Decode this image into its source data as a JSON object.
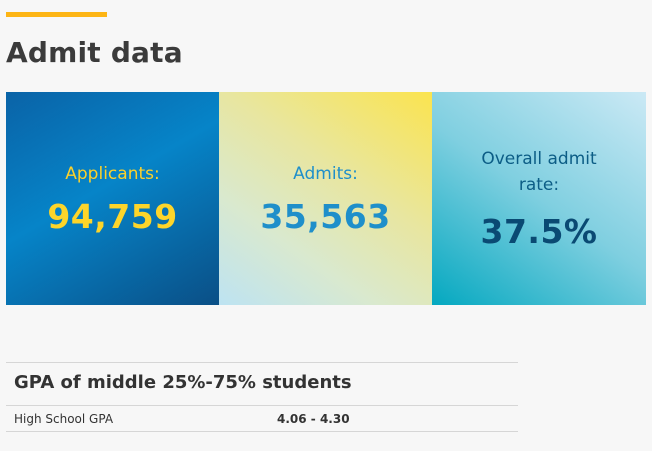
{
  "header": {
    "title": "Admit data"
  },
  "stats": [
    {
      "label": "Applicants:",
      "value": "94,759"
    },
    {
      "label": "Admits:",
      "value": "35,563"
    },
    {
      "label": "Overall admit rate:",
      "value": "37.5%"
    }
  ],
  "gpa": {
    "heading": "GPA of middle 25%-75% students",
    "rows": [
      {
        "label": "High School GPA",
        "value": "4.06 - 4.30"
      }
    ]
  },
  "colors": {
    "accent": "#fdb515",
    "applicants_text": "#fdd52a",
    "admits_text": "#1f8fca",
    "rate_text": "#0a4a73"
  }
}
